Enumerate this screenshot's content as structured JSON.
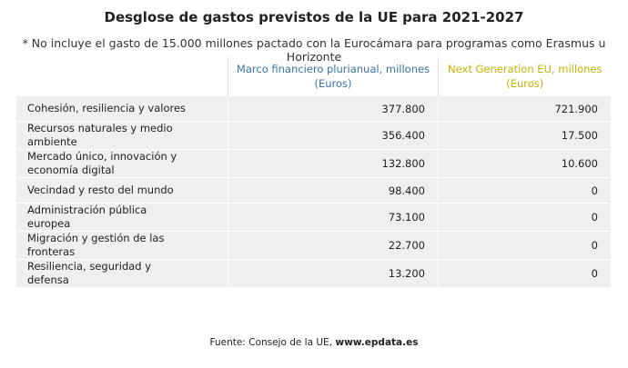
{
  "header": {
    "title": "Desglose de gastos previstos de la UE para 2021-2027",
    "subtitle": "* No incluye el gasto de 15.000 millones pactado con la Eurocámara para programas como Erasmus u Horizonte"
  },
  "table": {
    "columns": [
      "Marco financiero plurianual, millones (Euros)",
      "Next Generation EU, millones (Euros)"
    ],
    "rows": [
      [
        "Cohesión, resiliencia y valores",
        "377.800",
        "721.900"
      ],
      [
        "Recursos naturales y medio ambiente",
        "356.400",
        "17.500"
      ],
      [
        "Mercado único, innovación y economía digital",
        "132.800",
        "10.600"
      ],
      [
        "Vecindad y resto del mundo",
        "98.400",
        "0"
      ],
      [
        "Administración pública europea",
        "73.100",
        "0"
      ],
      [
        "Migración y gestión de las fronteras",
        "22.700",
        "0"
      ],
      [
        "Resiliencia, seguridad y defensa",
        "13.200",
        "0"
      ]
    ]
  },
  "source": {
    "text": "Fuente: Consejo de la UE,",
    "link": "www.epdata.es"
  }
}
